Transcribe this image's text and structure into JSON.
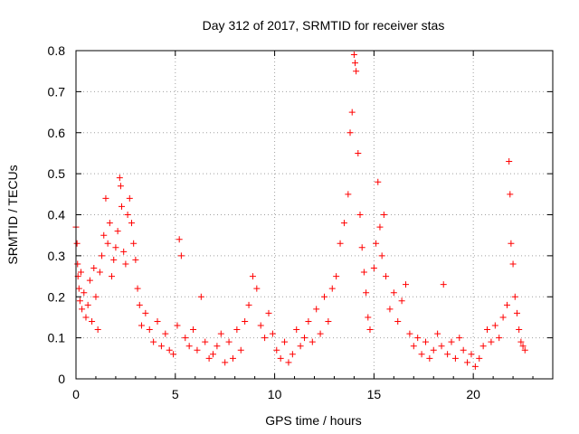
{
  "chart_data": {
    "type": "scatter",
    "title": "Day 312 of 2017, SRMTID for receiver stas",
    "xlabel": "GPS time / hours",
    "ylabel": "SRMTID / TECUs",
    "xlim": [
      0,
      24
    ],
    "ylim": [
      0,
      0.8
    ],
    "xticks": [
      0,
      5,
      10,
      15,
      20
    ],
    "yticks": [
      0,
      0.1,
      0.2,
      0.3,
      0.4,
      0.5,
      0.6,
      0.7,
      0.8
    ],
    "xtick_labels": [
      "0",
      "5",
      "10",
      "15",
      "20"
    ],
    "ytick_labels": [
      "0",
      "0.1",
      "0.2",
      "0.3",
      "0.4",
      "0.5",
      "0.6",
      "0.7",
      "0.8"
    ],
    "grid": true,
    "marker": "+",
    "color": "#ff0000",
    "series": [
      {
        "name": "SRMTID",
        "points": [
          [
            0.0,
            0.37
          ],
          [
            0.05,
            0.33
          ],
          [
            0.08,
            0.28
          ],
          [
            0.1,
            0.25
          ],
          [
            0.15,
            0.22
          ],
          [
            0.2,
            0.19
          ],
          [
            0.25,
            0.26
          ],
          [
            0.3,
            0.17
          ],
          [
            0.4,
            0.21
          ],
          [
            0.5,
            0.15
          ],
          [
            0.6,
            0.18
          ],
          [
            0.7,
            0.24
          ],
          [
            0.8,
            0.14
          ],
          [
            0.9,
            0.27
          ],
          [
            1.0,
            0.2
          ],
          [
            1.1,
            0.12
          ],
          [
            1.2,
            0.26
          ],
          [
            1.3,
            0.3
          ],
          [
            1.4,
            0.35
          ],
          [
            1.5,
            0.44
          ],
          [
            1.6,
            0.33
          ],
          [
            1.7,
            0.38
          ],
          [
            1.8,
            0.25
          ],
          [
            1.9,
            0.29
          ],
          [
            2.0,
            0.32
          ],
          [
            2.1,
            0.36
          ],
          [
            2.2,
            0.49
          ],
          [
            2.25,
            0.47
          ],
          [
            2.3,
            0.42
          ],
          [
            2.4,
            0.31
          ],
          [
            2.5,
            0.28
          ],
          [
            2.6,
            0.4
          ],
          [
            2.7,
            0.44
          ],
          [
            2.8,
            0.38
          ],
          [
            2.9,
            0.33
          ],
          [
            3.0,
            0.29
          ],
          [
            3.1,
            0.22
          ],
          [
            3.2,
            0.18
          ],
          [
            3.3,
            0.13
          ],
          [
            3.5,
            0.16
          ],
          [
            3.7,
            0.12
          ],
          [
            3.9,
            0.09
          ],
          [
            4.1,
            0.14
          ],
          [
            4.3,
            0.08
          ],
          [
            4.5,
            0.11
          ],
          [
            4.7,
            0.07
          ],
          [
            4.9,
            0.06
          ],
          [
            5.1,
            0.13
          ],
          [
            5.2,
            0.34
          ],
          [
            5.3,
            0.3
          ],
          [
            5.5,
            0.1
          ],
          [
            5.7,
            0.08
          ],
          [
            5.9,
            0.12
          ],
          [
            6.1,
            0.07
          ],
          [
            6.3,
            0.2
          ],
          [
            6.5,
            0.09
          ],
          [
            6.7,
            0.05
          ],
          [
            6.9,
            0.06
          ],
          [
            7.1,
            0.08
          ],
          [
            7.3,
            0.11
          ],
          [
            7.5,
            0.04
          ],
          [
            7.7,
            0.09
          ],
          [
            7.9,
            0.05
          ],
          [
            8.1,
            0.12
          ],
          [
            8.3,
            0.07
          ],
          [
            8.5,
            0.14
          ],
          [
            8.7,
            0.18
          ],
          [
            8.9,
            0.25
          ],
          [
            9.1,
            0.22
          ],
          [
            9.3,
            0.13
          ],
          [
            9.5,
            0.1
          ],
          [
            9.7,
            0.16
          ],
          [
            9.9,
            0.11
          ],
          [
            10.1,
            0.07
          ],
          [
            10.3,
            0.05
          ],
          [
            10.5,
            0.09
          ],
          [
            10.7,
            0.04
          ],
          [
            10.9,
            0.06
          ],
          [
            11.1,
            0.12
          ],
          [
            11.3,
            0.08
          ],
          [
            11.5,
            0.1
          ],
          [
            11.7,
            0.14
          ],
          [
            11.9,
            0.09
          ],
          [
            12.1,
            0.17
          ],
          [
            12.3,
            0.11
          ],
          [
            12.5,
            0.2
          ],
          [
            12.7,
            0.14
          ],
          [
            12.9,
            0.22
          ],
          [
            13.1,
            0.25
          ],
          [
            13.3,
            0.33
          ],
          [
            13.5,
            0.38
          ],
          [
            13.7,
            0.45
          ],
          [
            13.8,
            0.6
          ],
          [
            13.9,
            0.65
          ],
          [
            14.0,
            0.79
          ],
          [
            14.05,
            0.77
          ],
          [
            14.1,
            0.75
          ],
          [
            14.2,
            0.55
          ],
          [
            14.3,
            0.4
          ],
          [
            14.4,
            0.32
          ],
          [
            14.5,
            0.26
          ],
          [
            14.6,
            0.21
          ],
          [
            14.7,
            0.15
          ],
          [
            14.8,
            0.12
          ],
          [
            15.0,
            0.27
          ],
          [
            15.1,
            0.33
          ],
          [
            15.2,
            0.48
          ],
          [
            15.3,
            0.37
          ],
          [
            15.4,
            0.3
          ],
          [
            15.5,
            0.4
          ],
          [
            15.6,
            0.25
          ],
          [
            15.8,
            0.17
          ],
          [
            16.0,
            0.21
          ],
          [
            16.2,
            0.14
          ],
          [
            16.4,
            0.19
          ],
          [
            16.6,
            0.23
          ],
          [
            16.8,
            0.11
          ],
          [
            17.0,
            0.08
          ],
          [
            17.2,
            0.1
          ],
          [
            17.4,
            0.06
          ],
          [
            17.6,
            0.09
          ],
          [
            17.8,
            0.05
          ],
          [
            18.0,
            0.07
          ],
          [
            18.2,
            0.11
          ],
          [
            18.4,
            0.08
          ],
          [
            18.5,
            0.23
          ],
          [
            18.7,
            0.06
          ],
          [
            18.9,
            0.09
          ],
          [
            19.1,
            0.05
          ],
          [
            19.3,
            0.1
          ],
          [
            19.5,
            0.07
          ],
          [
            19.7,
            0.04
          ],
          [
            19.9,
            0.06
          ],
          [
            20.1,
            0.03
          ],
          [
            20.3,
            0.05
          ],
          [
            20.5,
            0.08
          ],
          [
            20.7,
            0.12
          ],
          [
            20.9,
            0.09
          ],
          [
            21.1,
            0.13
          ],
          [
            21.3,
            0.1
          ],
          [
            21.5,
            0.15
          ],
          [
            21.7,
            0.18
          ],
          [
            21.8,
            0.53
          ],
          [
            21.85,
            0.45
          ],
          [
            21.9,
            0.33
          ],
          [
            22.0,
            0.28
          ],
          [
            22.1,
            0.2
          ],
          [
            22.2,
            0.16
          ],
          [
            22.3,
            0.12
          ],
          [
            22.4,
            0.09
          ],
          [
            22.5,
            0.08
          ],
          [
            22.6,
            0.07
          ]
        ]
      }
    ]
  }
}
